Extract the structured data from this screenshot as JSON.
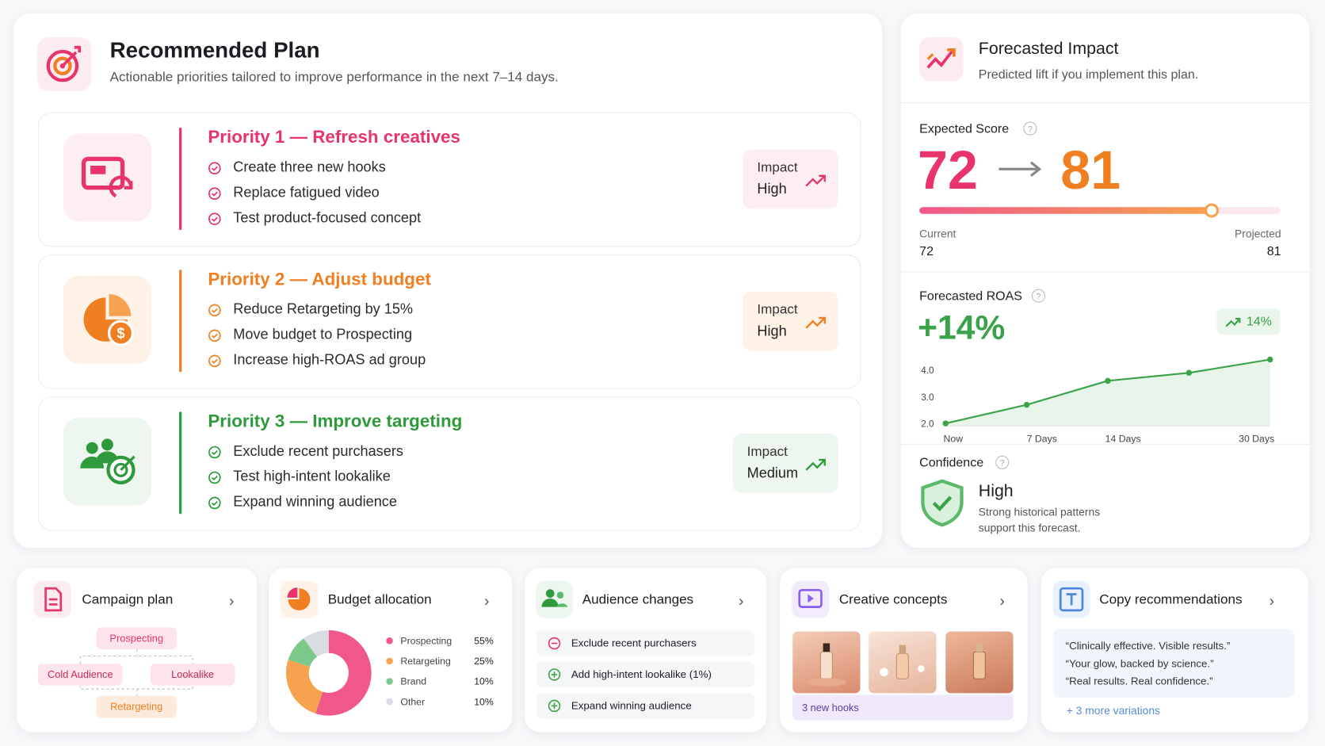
{
  "plan": {
    "title": "Recommended Plan",
    "subtitle": "Actionable priorities tailored to improve performance in the next 7–14 days.",
    "priorities": [
      {
        "title": "Priority 1 — Refresh creatives",
        "items": [
          "Create three new hooks",
          "Replace fatigued video",
          "Test product-focused concept"
        ],
        "impact_label": "Impact",
        "impact": "High"
      },
      {
        "title": "Priority 2 — Adjust budget",
        "items": [
          "Reduce Retargeting by 15%",
          "Move budget to Prospecting",
          "Increase high-ROAS ad group"
        ],
        "impact_label": "Impact",
        "impact": "High"
      },
      {
        "title": "Priority 3 — Improve targeting",
        "items": [
          "Exclude recent purchasers",
          "Test high-intent lookalike",
          "Expand winning audience"
        ],
        "impact_label": "Impact",
        "impact": "Medium"
      }
    ]
  },
  "forecast": {
    "title": "Forecasted Impact",
    "subtitle": "Predicted lift if you implement this plan.",
    "score": {
      "label": "Expected Score",
      "current": 72,
      "projected": 81,
      "current_label": "Current",
      "projected_label": "Projected",
      "range": [
        0,
        100
      ]
    },
    "roas": {
      "label": "Forecasted ROAS",
      "headline": "+14%",
      "badge": "14%",
      "chart": {
        "type": "line",
        "categories": [
          "Now",
          "7 Days",
          "14 Days",
          null,
          "30 Days"
        ],
        "values": [
          2.0,
          2.7,
          3.6,
          3.9,
          4.4
        ],
        "ylim": [
          1.9,
          4.6
        ],
        "yticks": [
          {
            "value": 2,
            "label": "2.0"
          },
          {
            "value": 3,
            "label": "3.0"
          },
          {
            "value": 4,
            "label": "4.0"
          }
        ],
        "color": "#3aa34a"
      }
    },
    "confidence": {
      "label": "Confidence",
      "value": "High",
      "description": [
        "Strong historical patterns",
        "support this forecast."
      ]
    }
  },
  "cards": {
    "campaign": {
      "title": "Campaign plan",
      "nodes": [
        "Prospecting",
        "Cold Audience",
        "Lookalike",
        "Retargeting"
      ]
    },
    "budget": {
      "title": "Budget allocation",
      "chart": {
        "type": "pie",
        "categories": [
          "Prospecting",
          "Retargeting",
          "Brand",
          "Other"
        ],
        "values": [
          55,
          25,
          10,
          10
        ],
        "value_labels": [
          "55%",
          "25%",
          "10%",
          "10%"
        ],
        "colors": [
          "#f0588a",
          "#f7a24f",
          "#7cc98b",
          "#d9dde3"
        ]
      }
    },
    "audience": {
      "title": "Audience changes",
      "items": [
        "Exclude recent purchasers",
        "Add high-intent lookalike (1%)",
        "Expand winning audience"
      ]
    },
    "creative": {
      "title": "Creative concepts",
      "caption": "3 new hooks"
    },
    "copy": {
      "title": "Copy recommendations",
      "quotes": [
        "“Clinically effective. Visible results.”",
        "“Your glow, backed by science.”",
        "“Real results. Real confidence.”"
      ],
      "more": "+ 3 more variations"
    }
  }
}
